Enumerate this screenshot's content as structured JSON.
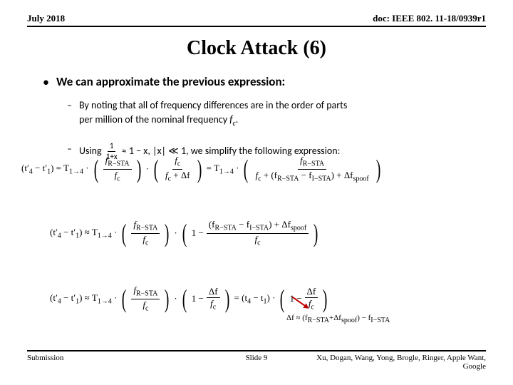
{
  "header": {
    "left": "July 2018",
    "right": "doc: IEEE 802. 11-18/0939r1"
  },
  "title": "Clock Attack (6)",
  "bullet": "We can approximate the previous expression:",
  "sub1a": "By noting that all of frequency differences are in the order of parts",
  "sub1b": "per million of the nominal frequency ",
  "sub1c": ".",
  "sub2a": "Using ",
  "sub2b": " ≈ 1 − x, |x| ≪ 1, we simplify the following expression:",
  "eq1": {
    "lhs": "(t′",
    "lhs4": "4",
    "lhsm": " − t′",
    "lhs1": "1",
    "lhse": ") = T",
    "t14": "1→4",
    "dot": " · ",
    "f1n": "f",
    "f1ns": "R−STA",
    "f1d": "f",
    "f1ds": "c",
    "f2n": "f",
    "f2ns": "c",
    "f2d": "f",
    "f2ds": "c",
    "f2p": " + Δf",
    "eq": " = T",
    "f3n": "f",
    "f3ns": "R−STA",
    "f3d1": "f",
    "f3d1s": "c",
    "f3p": " + (f",
    "f3ps": "R−STA",
    "f3m": " − f",
    "f3ms": "I−STA",
    "f3e": ") + Δf",
    "f3es": "spoof"
  },
  "eq2": {
    "lhs": "(t′",
    "lhs4": "4",
    "lhsm": " − t′",
    "lhs1": "1",
    "lhse": ") ≈ T",
    "t14": "1→4",
    "dot": " · ",
    "f1n": "f",
    "f1ns": "R−STA",
    "f1d": "f",
    "f1ds": "c",
    "one": "1 − ",
    "f2n1": "(f",
    "f2n1s": "R−STA",
    "f2n2": " − f",
    "f2n2s": "I−STA",
    "f2n3": ") + Δf",
    "f2n3s": "spoof",
    "f2d": "f",
    "f2ds": "c"
  },
  "eq3": {
    "lhs": "(t′",
    "lhs4": "4",
    "lhsm": " − t′",
    "lhs1": "1",
    "lhse": ") ≈ T",
    "t14": "1→4",
    "dot": " · ",
    "f1n": "f",
    "f1ns": "R−STA",
    "f1d": "f",
    "f1ds": "c",
    "one": "1 − ",
    "dfn": "Δf",
    "dfd": "f",
    "dfds": "c",
    "eq": " = (t",
    "r4": "4",
    "rm": " − t",
    "r1": "1",
    "re": ") · ",
    "one2": "1 − ",
    "dfn2": "Δf",
    "dfd2": "f",
    "dfds2": "c"
  },
  "note": "Δf ≈ (f_{R−STA} + Δf_{spoof}) − f_{I−STA}",
  "footer": {
    "left": "Submission",
    "center": "Slide 9",
    "right": "Xu, Dogan, Wang, Yong, Brogle, Ringer, Apple Want, Google"
  }
}
